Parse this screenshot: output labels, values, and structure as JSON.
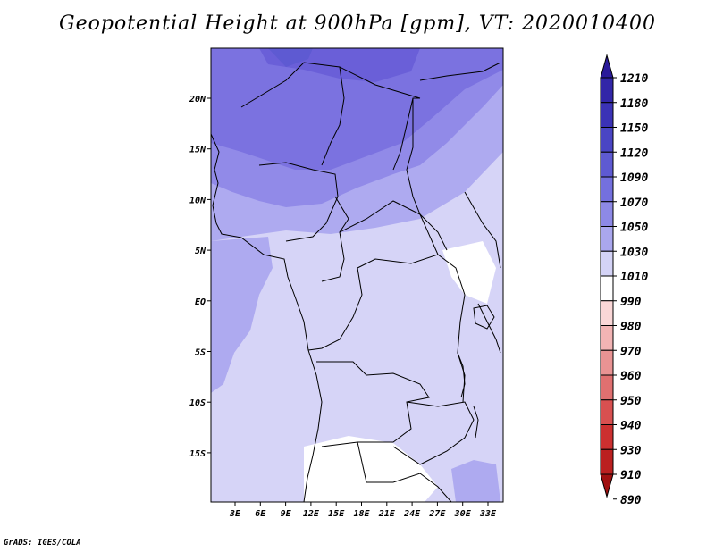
{
  "title": "Geopotential Height at 900hPa [gpm], VT: 2020010400",
  "footer": "GrADS: IGES/COLA",
  "map": {
    "lon_labels": [
      "3E",
      "6E",
      "9E",
      "12E",
      "15E",
      "18E",
      "21E",
      "24E",
      "27E",
      "30E",
      "33E"
    ],
    "lat_labels": [
      "20N",
      "15N",
      "10N",
      "5N",
      "EQ",
      "5S",
      "10S",
      "15S"
    ],
    "colorbar": {
      "levels": [
        "1210",
        "1180",
        "1150",
        "1120",
        "1090",
        "1070",
        "1050",
        "1030",
        "1010",
        "990",
        "980",
        "970",
        "960",
        "950",
        "940",
        "930",
        "910",
        "890"
      ],
      "colors": [
        "#2a1a9a",
        "#3226a8",
        "#3b32b6",
        "#4a45c4",
        "#5e5ad2",
        "#7470de",
        "#8d89e6",
        "#aaa7ee",
        "#d4d3f6",
        "#ffffff",
        "#fad7d7",
        "#f2b4b4",
        "#e99393",
        "#e07070",
        "#d85050",
        "#cc3030",
        "#bb2020",
        "#a01010"
      ]
    },
    "field_colors": {
      "deep": "#6a5fd8",
      "dark": "#7b72e0",
      "mid": "#918ae8",
      "light": "#aeaaf0",
      "pale": "#d6d4f7",
      "white": "#ffffff"
    }
  }
}
